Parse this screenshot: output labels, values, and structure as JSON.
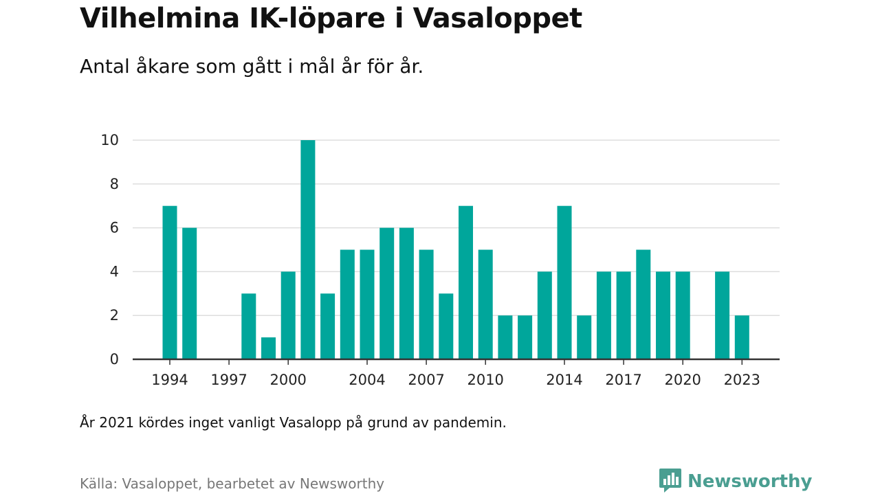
{
  "header": {
    "title": "Vilhelmina IK-löpare i Vasaloppet",
    "subtitle": "Antal åkare som gått i mål år för år."
  },
  "footer": {
    "note": "År 2021 kördes inget vanligt Vasalopp på grund av pandemin.",
    "source": "Källa: Vasaloppet, bearbetet av Newsworthy",
    "brand": "Newsworthy"
  },
  "colors": {
    "bar": "#00a69b",
    "brand": "#4a9e91",
    "grid": "#dddddd",
    "axis": "#333333"
  },
  "icons": {
    "brand_logo": "newsworthy-logo-icon"
  },
  "chart_data": {
    "type": "bar",
    "title": "Vilhelmina IK-löpare i Vasaloppet",
    "subtitle": "Antal åkare som gått i mål år för år.",
    "xlabel": "",
    "ylabel": "",
    "categories": [
      1994,
      1995,
      1996,
      1997,
      1998,
      1999,
      2000,
      2001,
      2002,
      2003,
      2004,
      2005,
      2006,
      2007,
      2008,
      2009,
      2010,
      2011,
      2012,
      2013,
      2014,
      2015,
      2016,
      2017,
      2018,
      2019,
      2020,
      2021,
      2022,
      2023
    ],
    "values": [
      7,
      6,
      0,
      0,
      3,
      1,
      4,
      10,
      3,
      5,
      5,
      6,
      6,
      5,
      3,
      7,
      5,
      2,
      2,
      4,
      7,
      2,
      4,
      4,
      5,
      4,
      4,
      0,
      4,
      2
    ],
    "x_tick_labels": [
      1994,
      1997,
      2000,
      2004,
      2007,
      2010,
      2014,
      2017,
      2020,
      2023
    ],
    "y_ticks": [
      0,
      2,
      4,
      6,
      8,
      10
    ],
    "ylim": [
      0,
      10
    ],
    "grid": true,
    "legend": "none"
  }
}
